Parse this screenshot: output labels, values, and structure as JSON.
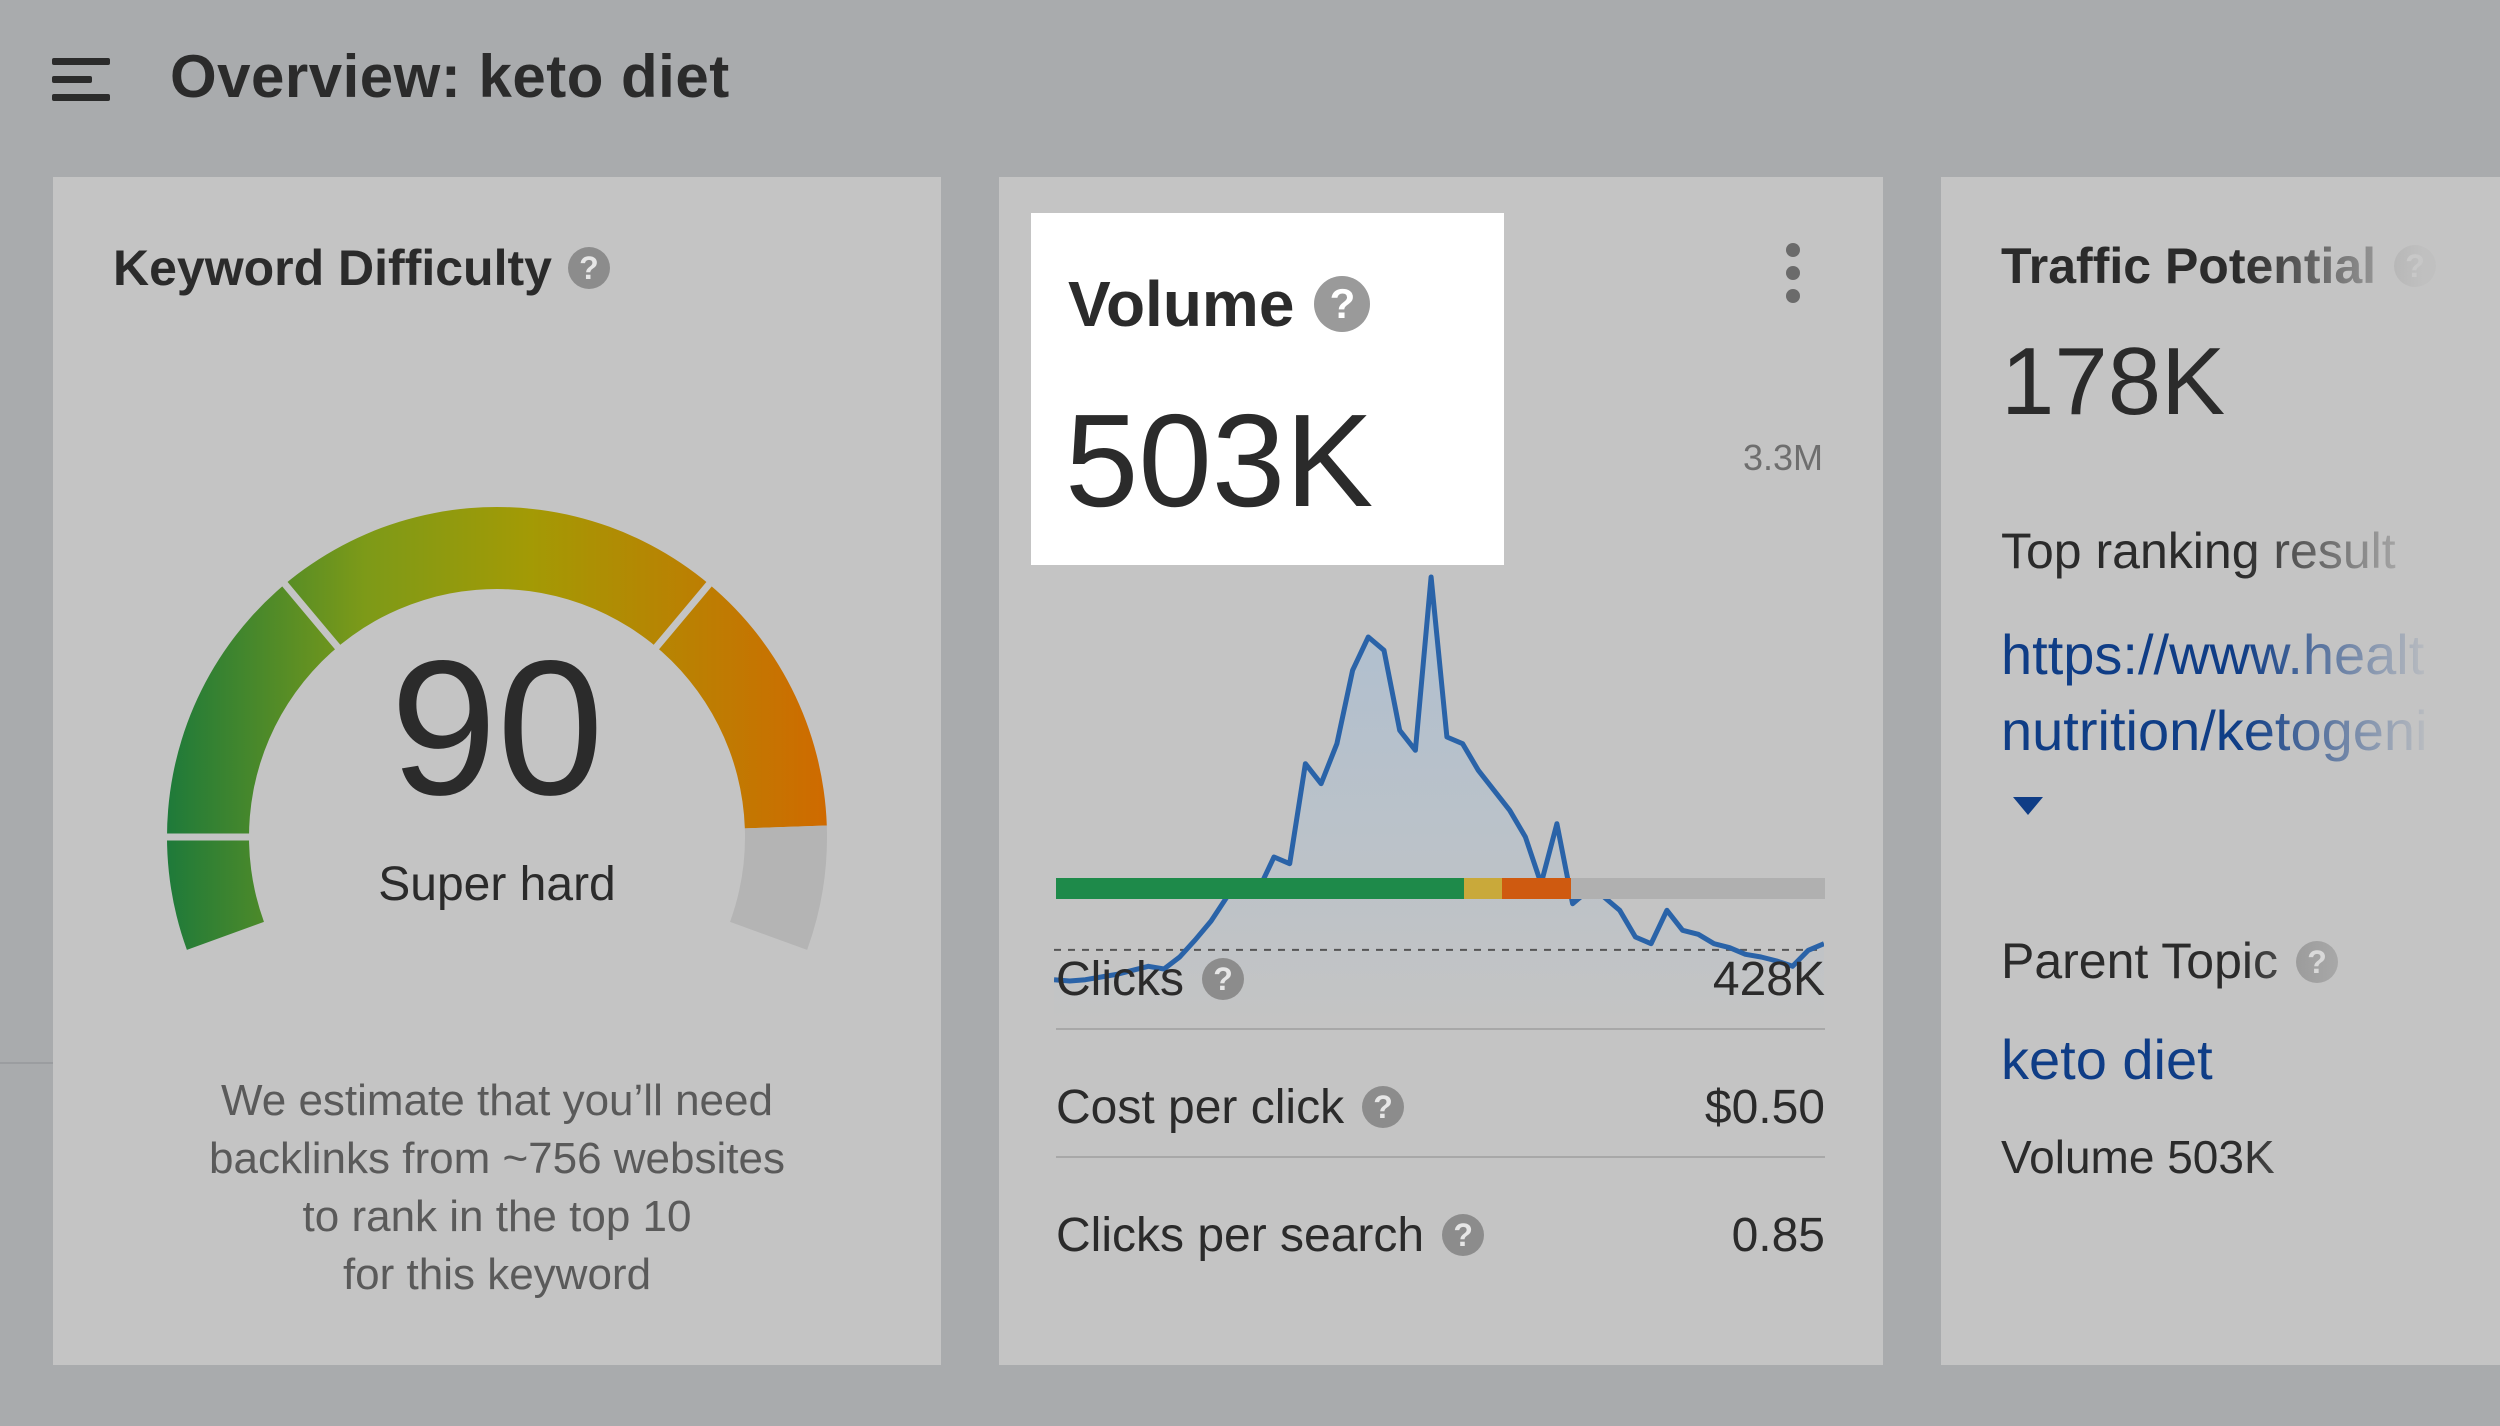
{
  "header": {
    "title": "Overview: keto diet",
    "menu_icon": "hamburger-menu-icon"
  },
  "keyword_difficulty": {
    "title": "Keyword Difficulty",
    "score": "90",
    "score_value": 90,
    "score_max": 100,
    "label": "Super hard",
    "description_lines": [
      "We estimate that you’ll need",
      "backlinks from ~756 websites",
      "to rank in the top 10",
      "for this keyword"
    ],
    "help_icon": "?",
    "gauge_colors": [
      "#1e7a3a",
      "#7d9a18",
      "#a39a05",
      "#cf6a00",
      "#b4b4b4"
    ]
  },
  "volume": {
    "title": "Volume",
    "value": "503K",
    "help_icon": "?",
    "chart_max_label": "3.3M",
    "intent_bar": [
      {
        "color": "#1e8a4a",
        "percent": 53
      },
      {
        "color": "#c9a93a",
        "percent": 5
      },
      {
        "color": "#cf5a10",
        "percent": 9
      },
      {
        "color": "#b0b0b0",
        "percent": 33
      }
    ],
    "metrics": [
      {
        "label": "Clicks",
        "value": "428K"
      },
      {
        "label": "Cost per click",
        "value": "$0.50"
      },
      {
        "label": "Clicks per search",
        "value": "0.85"
      }
    ]
  },
  "traffic_potential": {
    "title": "Traffic Potential",
    "value": "178K",
    "top_ranking_label": "Top ranking result",
    "top_ranking_url_line1": "https://www.healt",
    "top_ranking_url_line2": "nutrition/ketogeni",
    "parent_topic_label": "Parent Topic",
    "parent_topic_link": "keto diet",
    "parent_topic_volume": "Volume 503K",
    "help_icon": "?"
  },
  "chart_data": {
    "type": "area",
    "title": "",
    "xlabel": "",
    "ylabel": "",
    "y_max_label": "3.3M",
    "baseline": 0.503,
    "values": [
      0.28,
      0.27,
      0.28,
      0.3,
      0.32,
      0.35,
      0.38,
      0.36,
      0.45,
      0.58,
      0.72,
      0.9,
      1.0,
      0.95,
      1.2,
      1.15,
      1.9,
      1.75,
      2.05,
      2.6,
      2.85,
      2.75,
      2.15,
      2.0,
      3.3,
      2.1,
      2.05,
      1.85,
      1.7,
      1.55,
      1.35,
      1.0,
      1.45,
      0.85,
      0.95,
      0.9,
      0.8,
      0.6,
      0.55,
      0.8,
      0.65,
      0.62,
      0.55,
      0.52,
      0.47,
      0.45,
      0.42,
      0.38,
      0.5,
      0.55
    ]
  }
}
